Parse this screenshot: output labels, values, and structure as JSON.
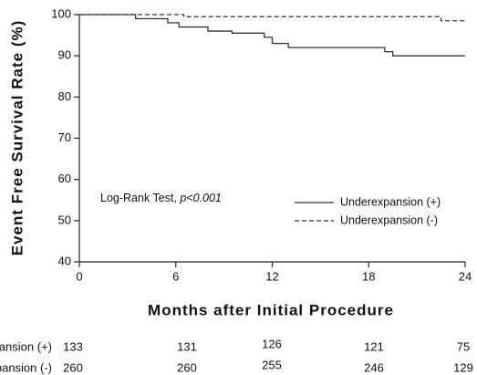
{
  "chart_data": {
    "type": "line",
    "step": true,
    "y_label": "Event Free Survival Rate (%)",
    "x_label": "Months after Initial Procedure",
    "x": [
      0,
      3.5,
      5.5,
      6.2,
      6.5,
      8,
      9.5,
      11.5,
      12,
      13,
      19,
      19.5,
      22.5,
      24
    ],
    "series": [
      {
        "name": "Underexpansion (+)",
        "color": "#333333",
        "dash": false,
        "values": [
          100,
          99,
          98,
          97,
          97,
          96,
          95.5,
          94.5,
          93,
          92,
          91,
          90,
          90,
          90
        ]
      },
      {
        "name": "Underexpansion (-)",
        "color": "#333333",
        "dash": true,
        "values": [
          100,
          100,
          100,
          100,
          99.5,
          99.5,
          99.5,
          99.5,
          99.5,
          99.5,
          99.5,
          99.5,
          98.5,
          98.5
        ]
      }
    ],
    "xlim": [
      0,
      24
    ],
    "xticks": [
      0,
      6,
      12,
      18,
      24
    ],
    "ylim": [
      40,
      100
    ],
    "yticks": [
      40,
      50,
      60,
      70,
      80,
      90,
      100
    ],
    "grid": false,
    "annotation": {
      "text": "Log-Rank Test, ",
      "p": "p<0.001"
    },
    "risk_table": [
      {
        "label": "Underexpansion (+)",
        "values": [
          133,
          131,
          126,
          121,
          75
        ]
      },
      {
        "label": "Underexpansion (-)",
        "values": [
          260,
          260,
          255,
          246,
          129
        ]
      }
    ]
  }
}
